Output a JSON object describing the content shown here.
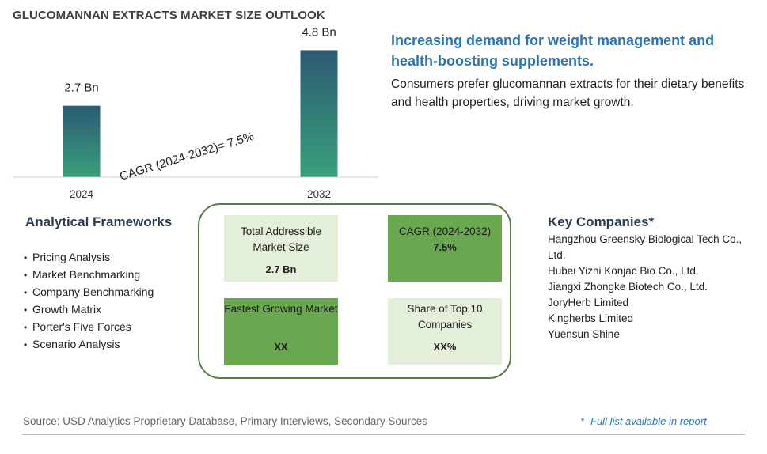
{
  "header": {
    "title": "GLUCOMANNAN EXTRACTS MARKET SIZE OUTLOOK"
  },
  "chart_data": {
    "type": "bar",
    "categories": [
      "2024",
      "2032"
    ],
    "values": [
      2.7,
      4.8
    ],
    "value_labels": [
      "2.7 Bn",
      "4.8 Bn"
    ],
    "annotation": "CAGR (2024-2032)=  7.5%",
    "ylim": [
      0,
      5.5
    ],
    "grid": false,
    "bar_gradient": [
      "#2b5a74",
      "#3aa07a"
    ]
  },
  "headline": {
    "title": "Increasing demand for weight management and health-boosting supplements.",
    "description": "Consumers prefer glucomannan extracts for their dietary benefits and health properties, driving market growth."
  },
  "frameworks": {
    "title": "Analytical Frameworks",
    "items": [
      "Pricing Analysis",
      "Market Benchmarking",
      "Company Benchmarking",
      "Growth Matrix",
      "Porter's Five Forces",
      "Scenario Analysis"
    ]
  },
  "kpis": {
    "tam": {
      "label": "Total Addressible Market Size",
      "value": "2.7 Bn"
    },
    "cagr": {
      "label": "CAGR (2024-2032)",
      "value": "7.5%"
    },
    "fastest": {
      "label": "Fastest Growing Market",
      "value": "XX"
    },
    "share": {
      "label": "Share of Top 10 Companies",
      "value": "XX%"
    }
  },
  "companies": {
    "title": "Key Companies*",
    "items": [
      "Hangzhou Greensky Biological Tech Co., Ltd.",
      "Hubei Yizhi Konjac Bio Co., Ltd.",
      "Jiangxi Zhongke Biotech Co., Ltd.",
      "JoryHerb Limited",
      "Kingherbs Limited",
      "Yuensun Shine"
    ]
  },
  "footer": {
    "source": "Source: USD Analytics Proprietary Database, Primary Interviews, Secondary Sources",
    "note": "*- Full list available in report"
  },
  "colors": {
    "accent_blue": "#2b73b3",
    "box_border": "#5c7a42",
    "kpi_light": "#e3efd9",
    "kpi_dark": "#6aa84f"
  }
}
